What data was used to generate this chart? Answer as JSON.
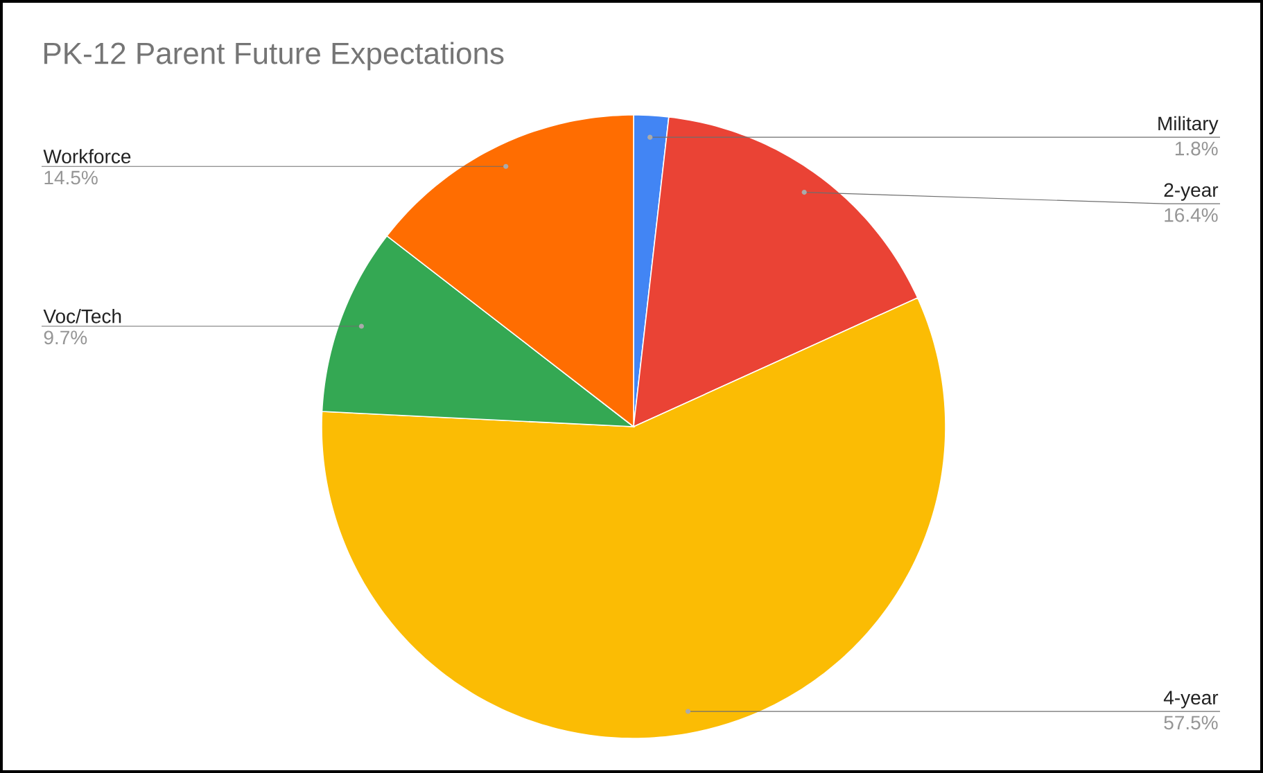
{
  "chart_data": {
    "type": "pie",
    "title": "PK-12 Parent Future Expectations",
    "categories": [
      "Military",
      "2-year",
      "4-year",
      "Voc/Tech",
      "Workforce"
    ],
    "values": [
      1.8,
      16.4,
      57.5,
      9.7,
      14.5
    ],
    "value_labels": [
      "1.8%",
      "16.4%",
      "57.5%",
      "9.7%",
      "14.5%"
    ],
    "colors": [
      "#4285f4",
      "#ea4335",
      "#fbbc04",
      "#34a853",
      "#ff6d01"
    ]
  }
}
